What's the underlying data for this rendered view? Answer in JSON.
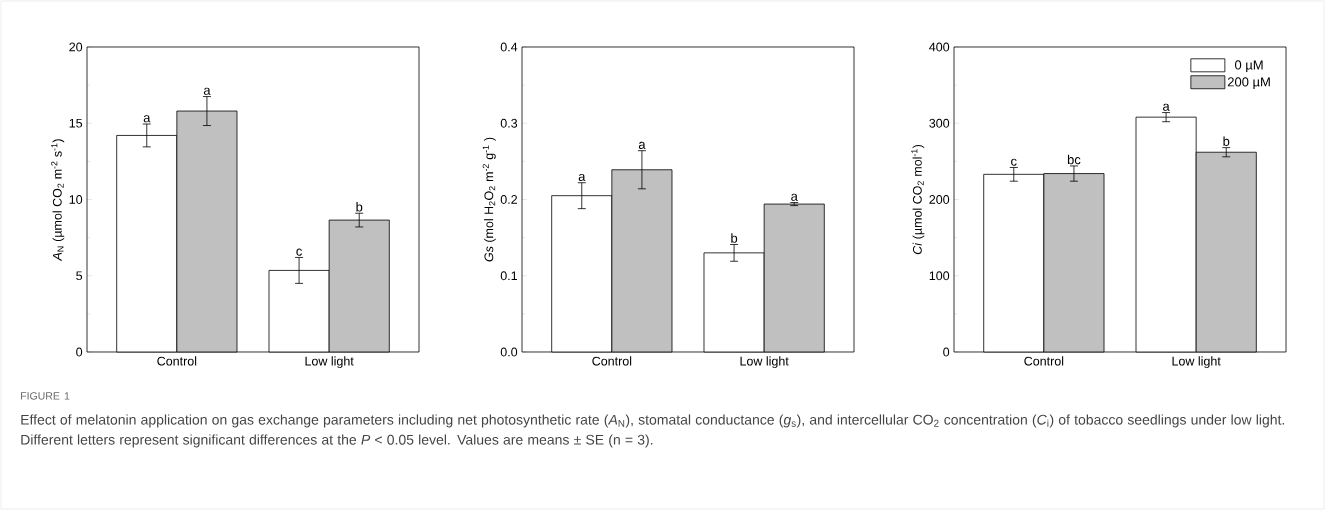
{
  "chart_data": [
    {
      "type": "bar",
      "categories": [
        "Control",
        "Low light"
      ],
      "ylabel": "*A*$_{N}$ (µmol CO$_{2}$ m$^{-2}$ s$^{-1}$)",
      "ylim": [
        0,
        20
      ],
      "yticks": [
        0,
        5,
        10,
        15,
        20
      ],
      "series": [
        {
          "color": "#ffffff",
          "values": [
            14.2,
            5.35
          ],
          "errors": [
            0.75,
            0.85
          ]
        },
        {
          "color": "#c0c0c0",
          "values": [
            15.8,
            8.65
          ],
          "errors": [
            0.95,
            0.45
          ]
        }
      ],
      "annotations": [
        "a",
        "a",
        "c",
        "b",
        "FIGURE 1",
        "Effect of melatonin application on gas exchange parameters including net photosynthetic rate (*A*$_{N}$), stomatal conductance (*g*$_{s}$), and intercellular CO$_{2}$ concentration (*C*$_{i}$) of tobacco seedlings under low light. Different letters represent significant differences at the *P* < 0.05 level. Values are means ± SE (n = 3)."
      ]
    },
    {
      "type": "bar",
      "categories": [
        "Control",
        "Low light"
      ],
      "ylabel": "*Gs* (mol H$_{2}$O$_{2}$ m$^{-2}$ g$^{-1}$ )",
      "ylim": [
        0,
        0.4
      ],
      "yticks": [
        {
          "value": 0,
          "label": "0.0"
        },
        0.1,
        0.2,
        0.3,
        0.4
      ],
      "series": [
        {
          "color": "#ffffff",
          "values": [
            0.205,
            0.13
          ],
          "errors": [
            0.017,
            0.011
          ]
        },
        {
          "color": "#c0c0c0",
          "values": [
            0.239,
            0.194
          ],
          "errors": [
            0.025,
            0.002
          ]
        }
      ],
      "annotations": [
        "a",
        "a",
        "b",
        "a"
      ]
    },
    {
      "type": "bar",
      "categories": [
        "Control",
        "Low light"
      ],
      "ylabel": "*Ci* (µmol CO$_{2}$ mol$^{-1}$)",
      "ylim": [
        0,
        400
      ],
      "yticks": [
        0,
        100,
        200,
        300,
        400
      ],
      "legend": "top right",
      "series": [
        {
          "name": "0 µM",
          "color": "#ffffff",
          "values": [
            233,
            308
          ],
          "errors": [
            9,
            6
          ]
        },
        {
          "name": "200 µM",
          "color": "#c0c0c0",
          "values": [
            234,
            262
          ],
          "errors": [
            10,
            6
          ]
        }
      ],
      "annotations": [
        "c",
        "bc",
        "a",
        "b"
      ]
    }
  ]
}
